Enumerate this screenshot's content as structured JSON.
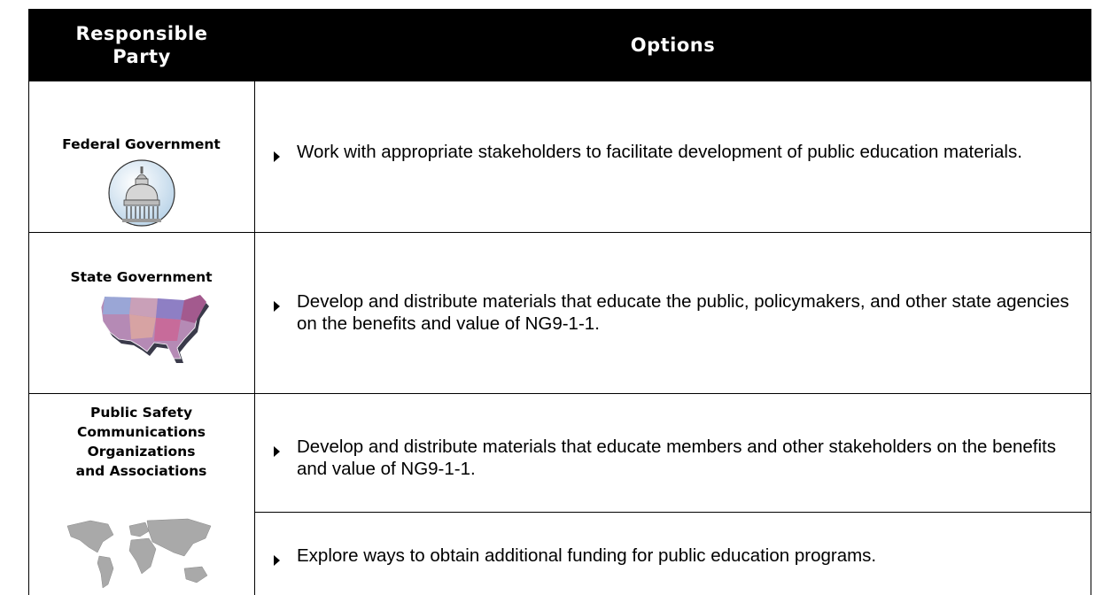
{
  "header": {
    "party": "Responsible Party",
    "options": "Options"
  },
  "rows": [
    {
      "party": [
        "Federal Government"
      ],
      "options": [
        "Work with appropriate stakeholders to facilitate development of public education materials."
      ]
    },
    {
      "party": [
        "State Government"
      ],
      "options": [
        "Develop and distribute materials that educate the public, policymakers, and other state agencies on the benefits and value of NG9-1-1."
      ]
    },
    {
      "party": [
        "Public Safety",
        "Communications",
        "Organizations",
        "and Associations"
      ],
      "options": [
        "Develop and distribute materials that educate members and other stakeholders on the benefits and value of NG9-1-1.",
        "Explore ways to obtain additional funding for public education programs."
      ]
    }
  ]
}
